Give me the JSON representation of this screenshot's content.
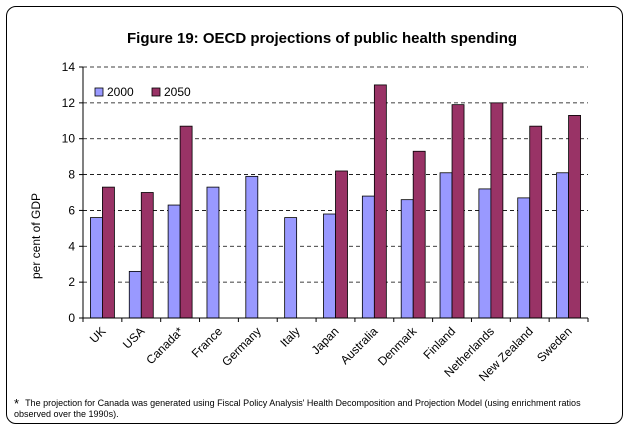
{
  "chart_data": {
    "type": "bar",
    "title": "Figure 19: OECD projections of public health spending",
    "ylabel": "per cent of GDP",
    "xlabel": "",
    "ylim": [
      0,
      14
    ],
    "yticks": [
      0,
      2,
      4,
      6,
      8,
      10,
      12,
      14
    ],
    "grid": true,
    "legend_position": "top-left",
    "categories": [
      "UK",
      "USA",
      "Canada*",
      "France",
      "Germany",
      "Italy",
      "Japan",
      "Australia",
      "Denmark",
      "Finland",
      "Netherlands",
      "New Zealand",
      "Sweden"
    ],
    "series": [
      {
        "name": "2000",
        "color": "#9999ff",
        "values": [
          5.6,
          2.6,
          6.3,
          7.3,
          7.9,
          5.6,
          5.8,
          6.8,
          6.6,
          8.1,
          7.2,
          6.7,
          8.1
        ]
      },
      {
        "name": "2050",
        "color": "#993366",
        "values": [
          7.3,
          7.0,
          10.7,
          null,
          null,
          null,
          8.2,
          13.0,
          9.3,
          11.9,
          12.0,
          10.7,
          11.3
        ]
      }
    ]
  },
  "footnote": {
    "marker": "*",
    "text": "The projection for Canada was generated using Fiscal Policy Analysis' Health Decomposition and Projection Model (using enrichment ratios observed over the 1990s)."
  }
}
